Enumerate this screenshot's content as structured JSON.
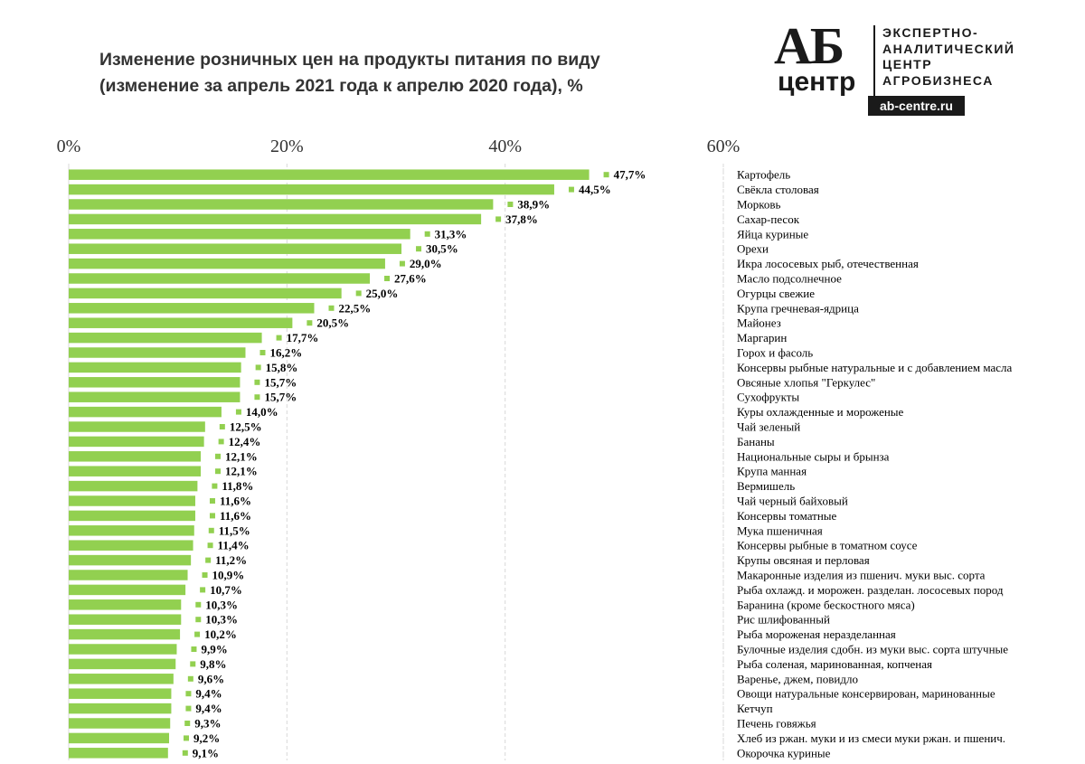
{
  "title": {
    "line1": "Изменение розничных цен на продукты питания по виду",
    "line2": "(изменение за апрель 2021 года к апрелю 2020 года), %"
  },
  "logo": {
    "mark": "АБ",
    "centr": "центр",
    "org_line1": "ЭКСПЕРТНО-",
    "org_line2": "АНАЛИТИЧЕСКИЙ",
    "org_line3": "ЦЕНТР",
    "org_line4": "АГРОБИЗНЕСА",
    "site": "ab-centre.ru"
  },
  "colors": {
    "bar": "#92d050",
    "grid": "#d9d9d9",
    "text": "#000000"
  },
  "chart_data": {
    "type": "bar",
    "orientation": "horizontal",
    "xlim": [
      0,
      60
    ],
    "ticks": [
      0,
      20,
      40,
      60
    ],
    "tick_labels": [
      "0%",
      "20%",
      "40%",
      "60%"
    ],
    "grid": true,
    "legend": "none",
    "categories": [
      "Картофель",
      "Свёкла столовая",
      "Морковь",
      "Сахар-песок",
      "Яйца куриные",
      "Орехи",
      "Икра лососевых рыб, отечественная",
      "Масло подсолнечное",
      "Огурцы свежие",
      "Крупа гречневая-ядрица",
      "Майонез",
      "Маргарин",
      "Горох и фасоль",
      "Консервы рыбные натуральные и с добавлением масла",
      "Овсяные хлопья \"Геркулес\"",
      "Сухофрукты",
      "Куры охлажденные и мороженые",
      "Чай зеленый",
      "Бананы",
      "Национальные сыры и брынза",
      "Крупа манная",
      "Вермишель",
      "Чай черный байховый",
      "Консервы томатные",
      "Мука пшеничная",
      "Консервы рыбные в томатном соусе",
      "Крупы овсяная и перловая",
      "Макаронные изделия из пшенич. муки выс. сорта",
      "Рыба охлажд. и морожен. разделан. лососевых пород",
      "Баранина (кроме бескостного мяса)",
      "Рис шлифованный",
      "Рыба мороженая неразделанная",
      "Булочные изделия сдобн. из муки выс. сорта штучные",
      "Рыба соленая, маринованная, копченая",
      "Варенье, джем, повидло",
      "Овощи натуральные консервирован, маринованные",
      "Кетчуп",
      "Печень говяжья",
      "Хлеб из ржан. муки и из смеси муки ржан. и пшенич.",
      "Окорочка куриные"
    ],
    "values": [
      47.7,
      44.5,
      38.9,
      37.8,
      31.3,
      30.5,
      29.0,
      27.6,
      25.0,
      22.5,
      20.5,
      17.7,
      16.2,
      15.8,
      15.7,
      15.7,
      14.0,
      12.5,
      12.4,
      12.1,
      12.1,
      11.8,
      11.6,
      11.6,
      11.5,
      11.4,
      11.2,
      10.9,
      10.7,
      10.3,
      10.3,
      10.2,
      9.9,
      9.8,
      9.6,
      9.4,
      9.4,
      9.3,
      9.2,
      9.1
    ],
    "value_labels": [
      "47,7%",
      "44,5%",
      "38,9%",
      "37,8%",
      "31,3%",
      "30,5%",
      "29,0%",
      "27,6%",
      "25,0%",
      "22,5%",
      "20,5%",
      "17,7%",
      "16,2%",
      "15,8%",
      "15,7%",
      "15,7%",
      "14,0%",
      "12,5%",
      "12,4%",
      "12,1%",
      "12,1%",
      "11,8%",
      "11,6%",
      "11,6%",
      "11,5%",
      "11,4%",
      "11,2%",
      "10,9%",
      "10,7%",
      "10,3%",
      "10,3%",
      "10,2%",
      "9,9%",
      "9,8%",
      "9,6%",
      "9,4%",
      "9,4%",
      "9,3%",
      "9,2%",
      "9,1%"
    ]
  }
}
